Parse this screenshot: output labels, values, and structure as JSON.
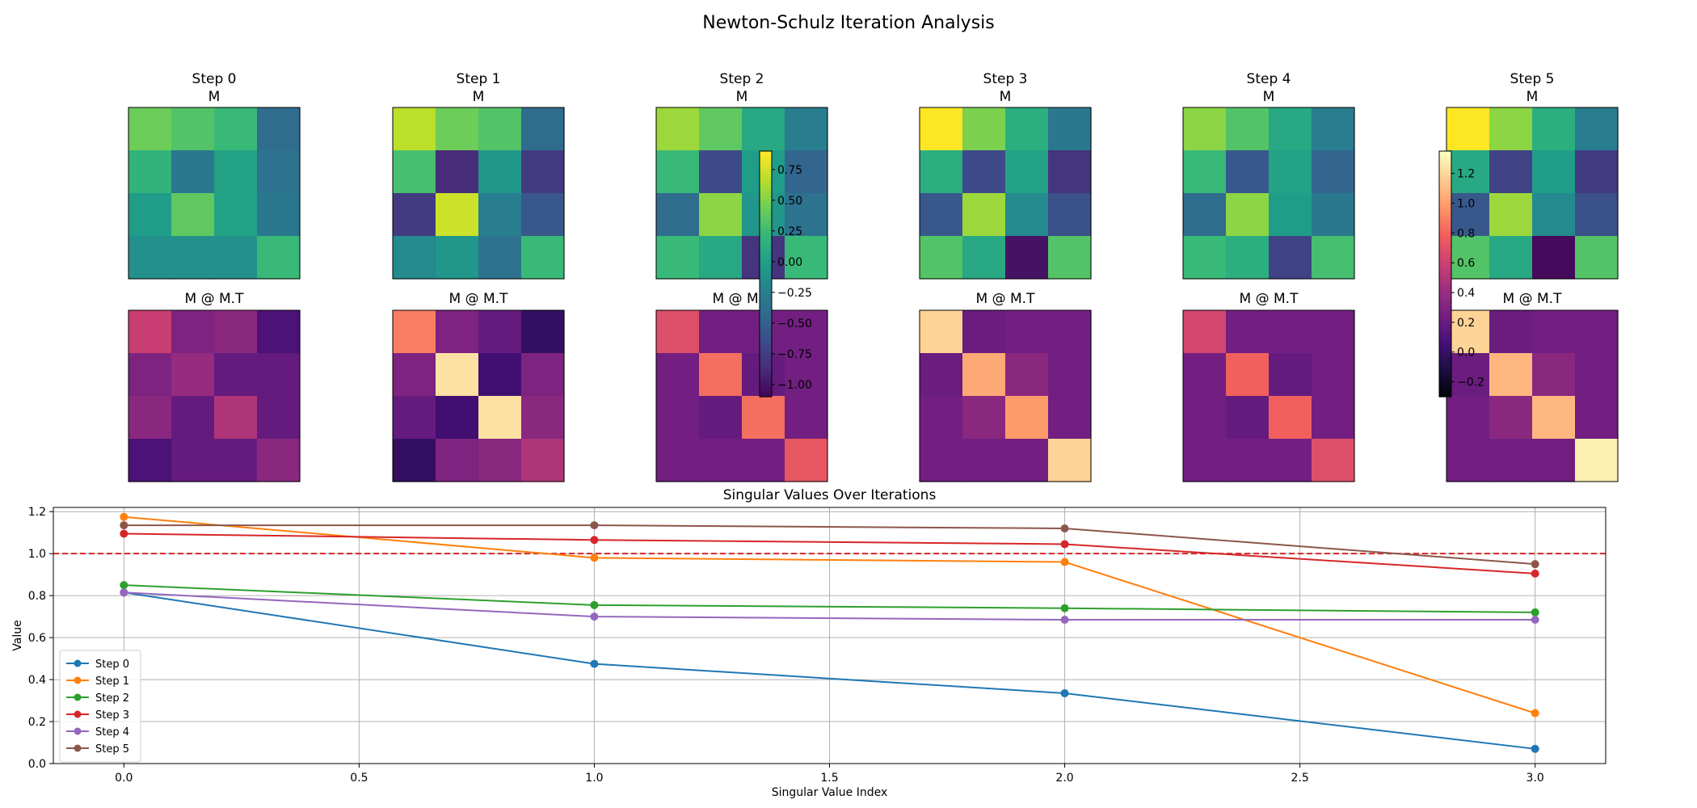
{
  "figure": {
    "title": "Newton-Schulz Iteration Analysis"
  },
  "chart_data": [
    {
      "type": "heatmap",
      "title_prefix": "Step",
      "row_titles": [
        "M",
        "M @ M.T"
      ],
      "steps": [
        {
          "label": "0",
          "M": [
            [
              0.45,
              0.35,
              0.25,
              -0.4
            ],
            [
              0.2,
              -0.3,
              0.05,
              -0.35
            ],
            [
              0.0,
              0.4,
              0.05,
              -0.3
            ],
            [
              -0.1,
              -0.1,
              -0.1,
              0.25
            ]
          ],
          "MMT": [
            [
              0.6,
              0.3,
              0.35,
              0.1
            ],
            [
              0.3,
              0.4,
              0.2,
              0.2
            ],
            [
              0.35,
              0.2,
              0.5,
              0.2
            ],
            [
              0.1,
              0.2,
              0.2,
              0.35
            ]
          ]
        },
        {
          "label": "1",
          "M": [
            [
              0.7,
              0.45,
              0.35,
              -0.4
            ],
            [
              0.3,
              -0.85,
              -0.05,
              -0.75
            ],
            [
              -0.75,
              0.75,
              -0.25,
              -0.55
            ],
            [
              -0.15,
              -0.05,
              -0.35,
              0.25
            ]
          ],
          "MMT": [
            [
              0.9,
              0.3,
              0.2,
              0.0
            ],
            [
              0.3,
              1.25,
              0.05,
              0.3
            ],
            [
              0.2,
              0.05,
              1.25,
              0.35
            ],
            [
              0.0,
              0.3,
              0.35,
              0.5
            ]
          ]
        },
        {
          "label": "2",
          "M": [
            [
              0.6,
              0.4,
              0.1,
              -0.25
            ],
            [
              0.25,
              -0.65,
              0.0,
              -0.45
            ],
            [
              -0.4,
              0.55,
              -0.05,
              -0.35
            ],
            [
              0.25,
              0.1,
              -0.8,
              0.25
            ]
          ],
          "MMT": [
            [
              0.7,
              0.25,
              0.25,
              0.25
            ],
            [
              0.25,
              0.85,
              0.2,
              0.25
            ],
            [
              0.25,
              0.2,
              0.85,
              0.25
            ],
            [
              0.25,
              0.25,
              0.25,
              0.75
            ]
          ]
        },
        {
          "label": "3",
          "M": [
            [
              0.9,
              0.5,
              0.15,
              -0.3
            ],
            [
              0.15,
              -0.65,
              0.05,
              -0.8
            ],
            [
              -0.55,
              0.6,
              -0.15,
              -0.6
            ],
            [
              0.35,
              0.1,
              -1.0,
              0.35
            ]
          ],
          "MMT": [
            [
              1.2,
              0.22,
              0.25,
              0.25
            ],
            [
              0.22,
              1.05,
              0.35,
              0.25
            ],
            [
              0.25,
              0.35,
              1.0,
              0.25
            ],
            [
              0.25,
              0.25,
              0.25,
              1.2
            ]
          ]
        },
        {
          "label": "4",
          "M": [
            [
              0.55,
              0.35,
              0.1,
              -0.25
            ],
            [
              0.25,
              -0.55,
              0.05,
              -0.45
            ],
            [
              -0.4,
              0.55,
              0.0,
              -0.3
            ],
            [
              0.25,
              0.15,
              -0.7,
              0.3
            ]
          ],
          "MMT": [
            [
              0.65,
              0.25,
              0.25,
              0.25
            ],
            [
              0.25,
              0.8,
              0.2,
              0.25
            ],
            [
              0.25,
              0.2,
              0.8,
              0.25
            ],
            [
              0.25,
              0.25,
              0.25,
              0.7
            ]
          ]
        },
        {
          "label": "5",
          "M": [
            [
              0.9,
              0.55,
              0.15,
              -0.25
            ],
            [
              0.1,
              -0.7,
              0.0,
              -0.75
            ],
            [
              -0.55,
              0.6,
              -0.15,
              -0.6
            ],
            [
              0.35,
              0.1,
              -1.05,
              0.35
            ]
          ],
          "MMT": [
            [
              1.2,
              0.22,
              0.25,
              0.25
            ],
            [
              0.22,
              1.1,
              0.35,
              0.25
            ],
            [
              0.25,
              0.35,
              1.1,
              0.25
            ],
            [
              0.25,
              0.25,
              0.25,
              1.3
            ]
          ]
        }
      ],
      "colorbars": [
        {
          "cmap": "viridis",
          "min": -1.1,
          "max": 0.9,
          "ticks": [
            0.75,
            0.5,
            0.25,
            0.0,
            -0.25,
            -0.5,
            -0.75,
            -1.0
          ],
          "tick_labels": [
            "0.75",
            "0.50",
            "0.25",
            "0.00",
            "−0.25",
            "−0.50",
            "−0.75",
            "−1.00"
          ]
        },
        {
          "cmap": "magma",
          "min": -0.3,
          "max": 1.35,
          "ticks": [
            1.2,
            1.0,
            0.8,
            0.6,
            0.4,
            0.2,
            0.0,
            -0.2
          ],
          "tick_labels": [
            "1.2",
            "1.0",
            "0.8",
            "0.6",
            "0.4",
            "0.2",
            "0.0",
            "−0.2"
          ]
        }
      ]
    },
    {
      "type": "line",
      "title": "Singular Values Over Iterations",
      "xlabel": "Singular Value Index",
      "ylabel": "Value",
      "xlim": [
        -0.15,
        3.15
      ],
      "ylim": [
        0,
        1.22
      ],
      "x": [
        0,
        1,
        2,
        3
      ],
      "xticks": [
        "0.0",
        "0.5",
        "1.0",
        "1.5",
        "2.0",
        "2.5",
        "3.0"
      ],
      "xtick_values": [
        0,
        0.5,
        1,
        1.5,
        2,
        2.5,
        3
      ],
      "yticks": [
        "0.0",
        "0.2",
        "0.4",
        "0.6",
        "0.8",
        "1.0",
        "1.2"
      ],
      "ytick_values": [
        0,
        0.2,
        0.4,
        0.6,
        0.8,
        1.0,
        1.2
      ],
      "grid": true,
      "legend_position": "lower-left",
      "reference_line": {
        "y": 1.0,
        "color": "#d62728",
        "style": "dashed"
      },
      "series": [
        {
          "name": "Step 0",
          "color": "#1f77b4",
          "values": [
            0.815,
            0.475,
            0.335,
            0.07
          ]
        },
        {
          "name": "Step 1",
          "color": "#ff7f0e",
          "values": [
            1.175,
            0.98,
            0.96,
            0.24
          ]
        },
        {
          "name": "Step 2",
          "color": "#2ca02c",
          "values": [
            0.85,
            0.755,
            0.74,
            0.72
          ]
        },
        {
          "name": "Step 3",
          "color": "#d62728",
          "values": [
            1.095,
            1.065,
            1.045,
            0.905
          ]
        },
        {
          "name": "Step 4",
          "color": "#9467bd",
          "values": [
            0.815,
            0.7,
            0.685,
            0.685
          ]
        },
        {
          "name": "Step 5",
          "color": "#8c564b",
          "values": [
            1.135,
            1.135,
            1.12,
            0.95
          ]
        }
      ]
    }
  ]
}
